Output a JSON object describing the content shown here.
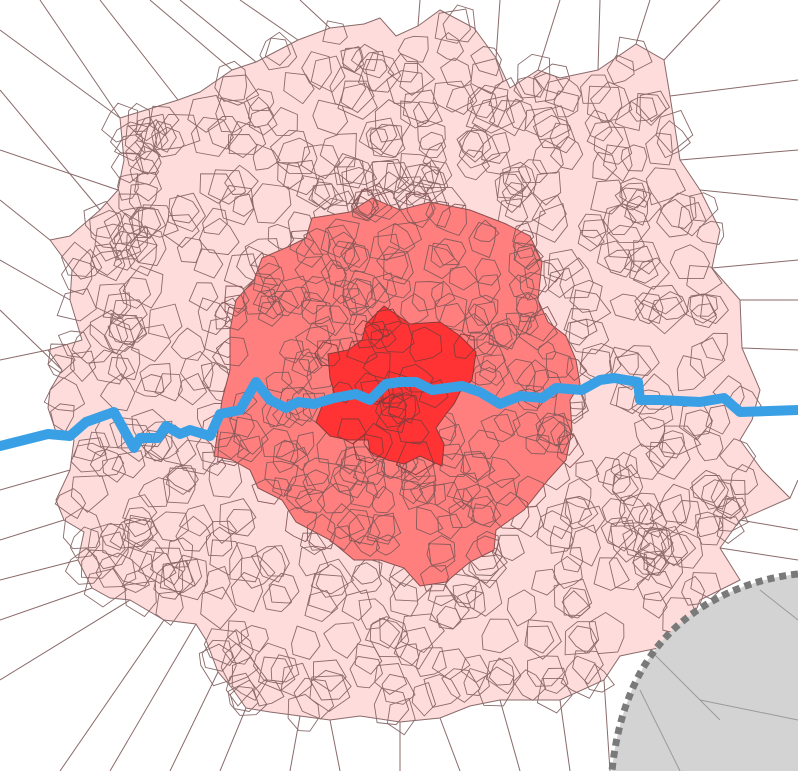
{
  "map": {
    "zones": [
      {
        "id": "outer-zone",
        "fill": "#ffdcdc",
        "stroke": "#a07070"
      },
      {
        "id": "middle-zone",
        "fill": "#ff7f7f",
        "stroke": "#a05050"
      },
      {
        "id": "inner-zone",
        "fill": "#ff3333",
        "stroke": "#a03030"
      }
    ],
    "river": {
      "color": "#3aa0e6"
    },
    "boundary": {
      "fill": "#d3d3d3",
      "dash_color": "#7a7a7a"
    },
    "cell_stroke": "#8a6a6a",
    "background": "#ffffff"
  }
}
